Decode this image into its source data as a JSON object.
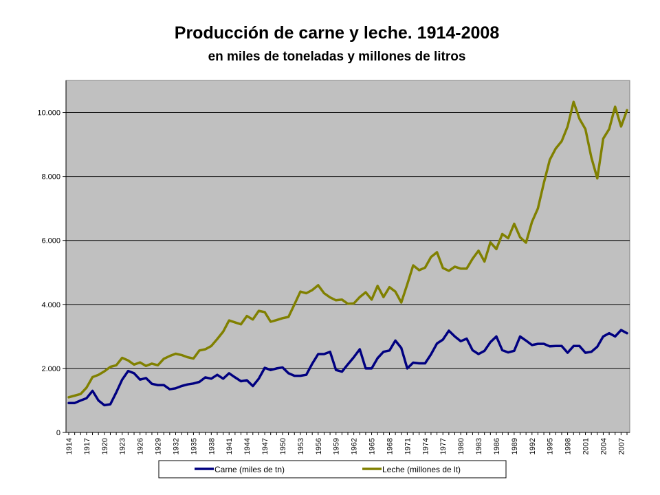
{
  "chart_data": {
    "type": "line",
    "title": "Producción de carne y leche. 1914-2008",
    "subtitle": "en miles de toneladas y millones de litros",
    "xlabel": "",
    "ylabel": "",
    "ylim": [
      0,
      11000
    ],
    "yticks": [
      0,
      2000,
      4000,
      6000,
      8000,
      10000
    ],
    "ytick_labels": [
      "0",
      "2.000",
      "4.000",
      "6.000",
      "8.000",
      "10.000"
    ],
    "xticks": [
      "1914",
      "1917",
      "1920",
      "1923",
      "1926",
      "1929",
      "1932",
      "1935",
      "1938",
      "1941",
      "1944",
      "1947",
      "1950",
      "1953",
      "1956",
      "1959",
      "1962",
      "1965",
      "1968",
      "1971",
      "1974",
      "1977",
      "1980",
      "1983",
      "1986",
      "1989",
      "1992",
      "1995",
      "1998",
      "2001",
      "2004",
      "2007"
    ],
    "grid": "horizontal",
    "legend": "bottom",
    "plot_background": "#c0c0c0",
    "x": [
      1914,
      1915,
      1916,
      1917,
      1918,
      1919,
      1920,
      1921,
      1922,
      1923,
      1924,
      1925,
      1926,
      1927,
      1928,
      1929,
      1930,
      1931,
      1932,
      1933,
      1934,
      1935,
      1936,
      1937,
      1938,
      1939,
      1940,
      1941,
      1942,
      1943,
      1944,
      1945,
      1946,
      1947,
      1948,
      1949,
      1950,
      1951,
      1952,
      1953,
      1954,
      1955,
      1956,
      1957,
      1958,
      1959,
      1960,
      1961,
      1962,
      1963,
      1964,
      1965,
      1966,
      1967,
      1968,
      1969,
      1970,
      1971,
      1972,
      1973,
      1974,
      1975,
      1976,
      1977,
      1978,
      1979,
      1980,
      1981,
      1982,
      1983,
      1984,
      1985,
      1986,
      1987,
      1988,
      1989,
      1990,
      1991,
      1992,
      1993,
      1994,
      1995,
      1996,
      1997,
      1998,
      1999,
      2000,
      2001,
      2002,
      2003,
      2004,
      2005,
      2006,
      2007,
      2008
    ],
    "series": [
      {
        "name": "Carne (miles de tn)",
        "color": "#000080",
        "values": [
          920,
          920,
          1000,
          1070,
          1300,
          1000,
          850,
          880,
          1250,
          1650,
          1920,
          1850,
          1650,
          1700,
          1520,
          1480,
          1480,
          1350,
          1380,
          1450,
          1500,
          1530,
          1580,
          1720,
          1680,
          1800,
          1680,
          1850,
          1720,
          1600,
          1630,
          1450,
          1680,
          2020,
          1950,
          2000,
          2030,
          1850,
          1770,
          1770,
          1800,
          2150,
          2450,
          2450,
          2520,
          1950,
          1900,
          2130,
          2350,
          2600,
          2000,
          2000,
          2320,
          2520,
          2560,
          2870,
          2640,
          2000,
          2180,
          2160,
          2160,
          2440,
          2780,
          2900,
          3180,
          3000,
          2850,
          2930,
          2570,
          2450,
          2550,
          2820,
          3000,
          2570,
          2500,
          2550,
          3000,
          2870,
          2730,
          2770,
          2770,
          2690,
          2700,
          2700,
          2490,
          2700,
          2700,
          2490,
          2520,
          2680,
          3000,
          3100,
          3000,
          3200,
          3100
        ]
      },
      {
        "name": "Leche (millones de lt)",
        "color": "#808000",
        "values": [
          1100,
          1150,
          1200,
          1400,
          1730,
          1800,
          1910,
          2050,
          2100,
          2330,
          2250,
          2120,
          2190,
          2080,
          2150,
          2100,
          2300,
          2390,
          2460,
          2420,
          2350,
          2310,
          2560,
          2600,
          2700,
          2920,
          3150,
          3500,
          3440,
          3380,
          3640,
          3530,
          3800,
          3760,
          3460,
          3510,
          3570,
          3610,
          4000,
          4400,
          4350,
          4450,
          4600,
          4350,
          4220,
          4130,
          4150,
          4020,
          4030,
          4230,
          4380,
          4150,
          4580,
          4230,
          4540,
          4400,
          4060,
          4630,
          5220,
          5070,
          5150,
          5480,
          5630,
          5140,
          5050,
          5180,
          5120,
          5120,
          5430,
          5680,
          5340,
          5940,
          5730,
          6200,
          6070,
          6520,
          6100,
          5930,
          6580,
          7000,
          7800,
          8520,
          8870,
          9100,
          9560,
          10330,
          9800,
          9480,
          8590,
          7940,
          9180,
          9480,
          10180,
          9560,
          10070
        ]
      }
    ]
  }
}
